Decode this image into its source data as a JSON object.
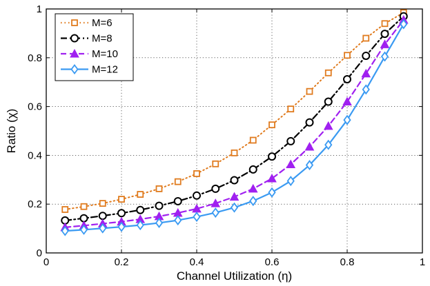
{
  "chart_data": {
    "type": "line",
    "title": "",
    "xlabel": "Channel Utilization (η)",
    "ylabel": "Ratio (χ)",
    "xlim": [
      0,
      1
    ],
    "ylim": [
      0,
      1
    ],
    "xticks": [
      0,
      0.2,
      0.4,
      0.6,
      0.8,
      1
    ],
    "yticks": [
      0,
      0.2,
      0.4,
      0.6,
      0.8,
      1
    ],
    "xtick_labels": [
      "0",
      "0.2",
      "0.4",
      "0.6",
      "0.8",
      "1"
    ],
    "ytick_labels": [
      "0",
      "0.2",
      "0.4",
      "0.6",
      "0.8",
      "1"
    ],
    "grid": true,
    "legend_position": "top-left",
    "x": [
      0.05,
      0.1,
      0.15,
      0.2,
      0.25,
      0.3,
      0.35,
      0.4,
      0.45,
      0.5,
      0.55,
      0.6,
      0.65,
      0.7,
      0.75,
      0.8,
      0.85,
      0.9,
      0.95
    ],
    "series": [
      {
        "name": "M=6",
        "color": "#e07b1e",
        "line_style": "dotted",
        "marker": "square",
        "values": [
          0.178,
          0.19,
          0.203,
          0.22,
          0.24,
          0.263,
          0.292,
          0.325,
          0.365,
          0.41,
          0.462,
          0.525,
          0.59,
          0.662,
          0.738,
          0.81,
          0.88,
          0.94,
          0.985
        ]
      },
      {
        "name": "M=8",
        "color": "#000000",
        "line_style": "dashdot",
        "marker": "circle",
        "values": [
          0.133,
          0.142,
          0.152,
          0.163,
          0.176,
          0.193,
          0.212,
          0.235,
          0.263,
          0.298,
          0.342,
          0.395,
          0.458,
          0.535,
          0.62,
          0.712,
          0.808,
          0.898,
          0.97
        ]
      },
      {
        "name": "M=10",
        "color": "#a020f0",
        "line_style": "dashed",
        "marker": "triangle",
        "values": [
          0.105,
          0.112,
          0.12,
          0.128,
          0.138,
          0.15,
          0.164,
          0.181,
          0.203,
          0.23,
          0.263,
          0.305,
          0.363,
          0.435,
          0.52,
          0.62,
          0.735,
          0.855,
          0.955
        ]
      },
      {
        "name": "M=12",
        "color": "#3a9af2",
        "line_style": "solid",
        "marker": "diamond",
        "values": [
          0.09,
          0.095,
          0.101,
          0.107,
          0.114,
          0.123,
          0.134,
          0.148,
          0.165,
          0.186,
          0.213,
          0.248,
          0.295,
          0.36,
          0.443,
          0.545,
          0.67,
          0.805,
          0.938
        ]
      }
    ]
  }
}
